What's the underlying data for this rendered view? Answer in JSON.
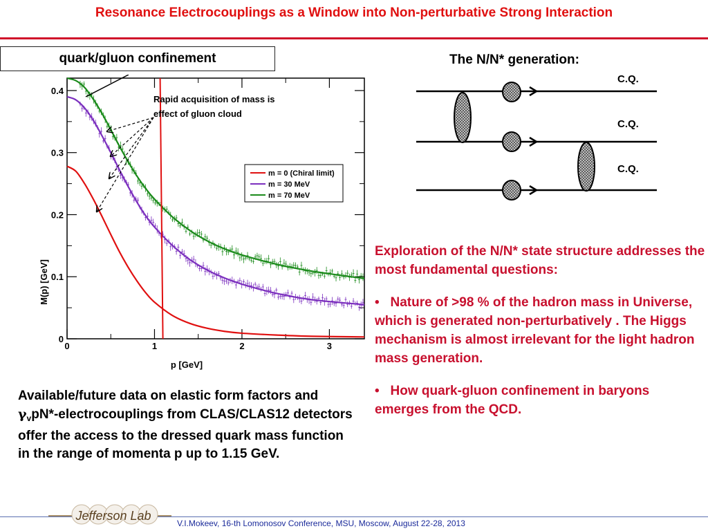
{
  "slide": {
    "title": "Resonance Electrocouplings as a Window into Non-perturbative Strong Interaction",
    "confinement_box": "quark/gluon confinement",
    "nn_generation_title": "The N/N* generation:",
    "cq_labels": [
      "C.Q.",
      "C.Q.",
      "C.Q."
    ],
    "annotation": [
      "Rapid acquisition of mass is",
      "effect of gluon cloud"
    ],
    "exploration": {
      "intro": "Exploration  of the N/N* state structure addresses the most fundamental questions:",
      "bullet_symbol": "•",
      "bullets": [
        "Nature of >98 % of the hadron mass in Universe, which is generated non-perturbatively .  The Higgs mechanism is almost irrelevant for the light hadron mass generation.",
        "How  quark-gluon confinement in baryons emerges  from the QCD."
      ]
    },
    "available": {
      "part1": "Available/future data on elastic form factors and ",
      "gamma": "γ",
      "gamma_sub": "v",
      "part2": "pN*-electrocouplings  from CLAS/CLAS12 detectors  offer  the access to the dressed quark mass  function in the range of  momenta p up to 1.15 GeV."
    },
    "footer": "V.I.Mokeev, 16-th Lomonosov Conference, MSU, Moscow, August 22-28, 2013",
    "logo_text": "Jefferson Lab"
  },
  "chart_data": {
    "type": "line",
    "xlabel": "p [GeV]",
    "ylabel": "M(p) [GeV]",
    "xlim": [
      0,
      3.4
    ],
    "ylim": [
      0,
      0.42
    ],
    "xticks": [
      0,
      1,
      2,
      3
    ],
    "yticks": [
      0,
      0.1,
      0.2,
      0.3,
      0.4
    ],
    "ytick_labels": [
      "0",
      "0.1",
      "0.2",
      "0.3",
      "0.4"
    ],
    "vertical_line_x": 1.08,
    "legend_position": "center-right",
    "series": [
      {
        "name": "m = 0 (Chiral limit)",
        "color": "#e01010",
        "x": [
          0,
          0.1,
          0.2,
          0.3,
          0.4,
          0.5,
          0.6,
          0.7,
          0.8,
          0.9,
          1.0,
          1.2,
          1.4,
          1.6,
          1.8,
          2.0,
          2.4,
          2.8,
          3.4
        ],
        "y": [
          0.278,
          0.27,
          0.25,
          0.225,
          0.197,
          0.168,
          0.14,
          0.115,
          0.093,
          0.074,
          0.059,
          0.038,
          0.025,
          0.017,
          0.012,
          0.009,
          0.006,
          0.004,
          0.003
        ]
      },
      {
        "name": "m = 30 MeV",
        "color": "#7b2fbe",
        "x": [
          0,
          0.1,
          0.2,
          0.3,
          0.4,
          0.5,
          0.6,
          0.7,
          0.8,
          0.9,
          1.0,
          1.2,
          1.4,
          1.6,
          1.8,
          2.0,
          2.4,
          2.8,
          3.4
        ],
        "y": [
          0.39,
          0.385,
          0.372,
          0.352,
          0.327,
          0.3,
          0.272,
          0.245,
          0.22,
          0.198,
          0.18,
          0.151,
          0.128,
          0.111,
          0.098,
          0.088,
          0.073,
          0.063,
          0.055
        ]
      },
      {
        "name": "m = 70 MeV",
        "color": "#1a8a1a",
        "x": [
          0,
          0.1,
          0.2,
          0.3,
          0.4,
          0.5,
          0.6,
          0.7,
          0.8,
          0.9,
          1.0,
          1.2,
          1.4,
          1.6,
          1.8,
          2.0,
          2.4,
          2.8,
          3.4
        ],
        "y": [
          0.42,
          0.416,
          0.405,
          0.386,
          0.363,
          0.337,
          0.31,
          0.285,
          0.262,
          0.242,
          0.225,
          0.197,
          0.175,
          0.158,
          0.145,
          0.135,
          0.12,
          0.109,
          0.097
        ]
      }
    ]
  }
}
